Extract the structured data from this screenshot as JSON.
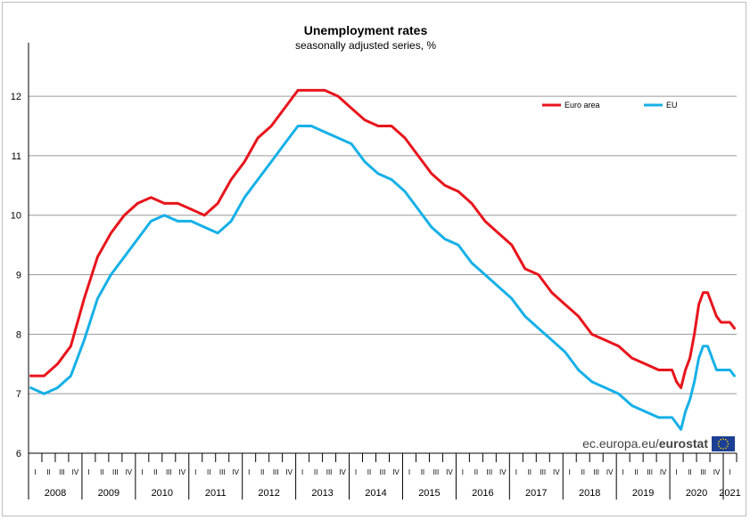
{
  "chart_data": {
    "type": "line",
    "title": "Unemployment rates",
    "subtitle": "seasonally adjusted series, %",
    "ylim": [
      6,
      12.6
    ],
    "yticks": [
      6,
      7,
      8,
      9,
      10,
      11,
      12
    ],
    "grid": true,
    "legend_placement": "top-right",
    "quarter_labels": [
      "I",
      "II",
      "III",
      "IV"
    ],
    "years": [
      "2008",
      "2009",
      "2010",
      "2011",
      "2012",
      "2013",
      "2014",
      "2015",
      "2016",
      "2017",
      "2018",
      "2019",
      "2020",
      "2021"
    ],
    "x_start": "2008-01",
    "x_end": "2021-03",
    "series": [
      {
        "name": "Euro area",
        "color": "#e8141c",
        "points": [
          [
            "2008-01",
            7.3
          ],
          [
            "2008-04",
            7.3
          ],
          [
            "2008-07",
            7.5
          ],
          [
            "2008-10",
            7.8
          ],
          [
            "2009-01",
            8.6
          ],
          [
            "2009-04",
            9.3
          ],
          [
            "2009-07",
            9.7
          ],
          [
            "2009-10",
            10.0
          ],
          [
            "2010-01",
            10.2
          ],
          [
            "2010-04",
            10.3
          ],
          [
            "2010-07",
            10.2
          ],
          [
            "2010-10",
            10.2
          ],
          [
            "2011-01",
            10.1
          ],
          [
            "2011-04",
            10.0
          ],
          [
            "2011-07",
            10.2
          ],
          [
            "2011-10",
            10.6
          ],
          [
            "2012-01",
            10.9
          ],
          [
            "2012-04",
            11.3
          ],
          [
            "2012-07",
            11.5
          ],
          [
            "2012-10",
            11.8
          ],
          [
            "2013-01",
            12.1
          ],
          [
            "2013-04",
            12.1
          ],
          [
            "2013-07",
            12.1
          ],
          [
            "2013-10",
            12.0
          ],
          [
            "2014-01",
            11.8
          ],
          [
            "2014-04",
            11.6
          ],
          [
            "2014-07",
            11.5
          ],
          [
            "2014-10",
            11.5
          ],
          [
            "2015-01",
            11.3
          ],
          [
            "2015-04",
            11.0
          ],
          [
            "2015-07",
            10.7
          ],
          [
            "2015-10",
            10.5
          ],
          [
            "2016-01",
            10.4
          ],
          [
            "2016-04",
            10.2
          ],
          [
            "2016-07",
            9.9
          ],
          [
            "2016-10",
            9.7
          ],
          [
            "2017-01",
            9.5
          ],
          [
            "2017-04",
            9.1
          ],
          [
            "2017-07",
            9.0
          ],
          [
            "2017-10",
            8.7
          ],
          [
            "2018-01",
            8.5
          ],
          [
            "2018-04",
            8.3
          ],
          [
            "2018-07",
            8.0
          ],
          [
            "2018-10",
            7.9
          ],
          [
            "2019-01",
            7.8
          ],
          [
            "2019-04",
            7.6
          ],
          [
            "2019-07",
            7.5
          ],
          [
            "2019-10",
            7.4
          ],
          [
            "2020-01",
            7.4
          ],
          [
            "2020-02",
            7.2
          ],
          [
            "2020-03",
            7.1
          ],
          [
            "2020-04",
            7.4
          ],
          [
            "2020-05",
            7.6
          ],
          [
            "2020-06",
            8.0
          ],
          [
            "2020-07",
            8.5
          ],
          [
            "2020-08",
            8.7
          ],
          [
            "2020-09",
            8.7
          ],
          [
            "2020-10",
            8.5
          ],
          [
            "2020-11",
            8.3
          ],
          [
            "2020-12",
            8.2
          ],
          [
            "2021-01",
            8.2
          ],
          [
            "2021-02",
            8.2
          ],
          [
            "2021-03",
            8.1
          ]
        ]
      },
      {
        "name": "EU",
        "color": "#16b0e8",
        "points": [
          [
            "2008-01",
            7.1
          ],
          [
            "2008-04",
            7.0
          ],
          [
            "2008-07",
            7.1
          ],
          [
            "2008-10",
            7.3
          ],
          [
            "2009-01",
            7.9
          ],
          [
            "2009-04",
            8.6
          ],
          [
            "2009-07",
            9.0
          ],
          [
            "2009-10",
            9.3
          ],
          [
            "2010-01",
            9.6
          ],
          [
            "2010-04",
            9.9
          ],
          [
            "2010-07",
            10.0
          ],
          [
            "2010-10",
            9.9
          ],
          [
            "2011-01",
            9.9
          ],
          [
            "2011-04",
            9.8
          ],
          [
            "2011-07",
            9.7
          ],
          [
            "2011-10",
            9.9
          ],
          [
            "2012-01",
            10.3
          ],
          [
            "2012-04",
            10.6
          ],
          [
            "2012-07",
            10.9
          ],
          [
            "2012-10",
            11.2
          ],
          [
            "2013-01",
            11.5
          ],
          [
            "2013-04",
            11.5
          ],
          [
            "2013-07",
            11.4
          ],
          [
            "2013-10",
            11.3
          ],
          [
            "2014-01",
            11.2
          ],
          [
            "2014-04",
            10.9
          ],
          [
            "2014-07",
            10.7
          ],
          [
            "2014-10",
            10.6
          ],
          [
            "2015-01",
            10.4
          ],
          [
            "2015-04",
            10.1
          ],
          [
            "2015-07",
            9.8
          ],
          [
            "2015-10",
            9.6
          ],
          [
            "2016-01",
            9.5
          ],
          [
            "2016-04",
            9.2
          ],
          [
            "2016-07",
            9.0
          ],
          [
            "2016-10",
            8.8
          ],
          [
            "2017-01",
            8.6
          ],
          [
            "2017-04",
            8.3
          ],
          [
            "2017-07",
            8.1
          ],
          [
            "2017-10",
            7.9
          ],
          [
            "2018-01",
            7.7
          ],
          [
            "2018-04",
            7.4
          ],
          [
            "2018-07",
            7.2
          ],
          [
            "2018-10",
            7.1
          ],
          [
            "2019-01",
            7.0
          ],
          [
            "2019-04",
            6.8
          ],
          [
            "2019-07",
            6.7
          ],
          [
            "2019-10",
            6.6
          ],
          [
            "2020-01",
            6.6
          ],
          [
            "2020-02",
            6.5
          ],
          [
            "2020-03",
            6.4
          ],
          [
            "2020-04",
            6.7
          ],
          [
            "2020-05",
            6.9
          ],
          [
            "2020-06",
            7.2
          ],
          [
            "2020-07",
            7.6
          ],
          [
            "2020-08",
            7.8
          ],
          [
            "2020-09",
            7.8
          ],
          [
            "2020-10",
            7.6
          ],
          [
            "2020-11",
            7.4
          ],
          [
            "2020-12",
            7.4
          ],
          [
            "2021-01",
            7.4
          ],
          [
            "2021-02",
            7.4
          ],
          [
            "2021-03",
            7.3
          ]
        ]
      }
    ]
  },
  "branding": {
    "text_regular": "ec.europa.eu/",
    "text_bold": "eurostat"
  }
}
